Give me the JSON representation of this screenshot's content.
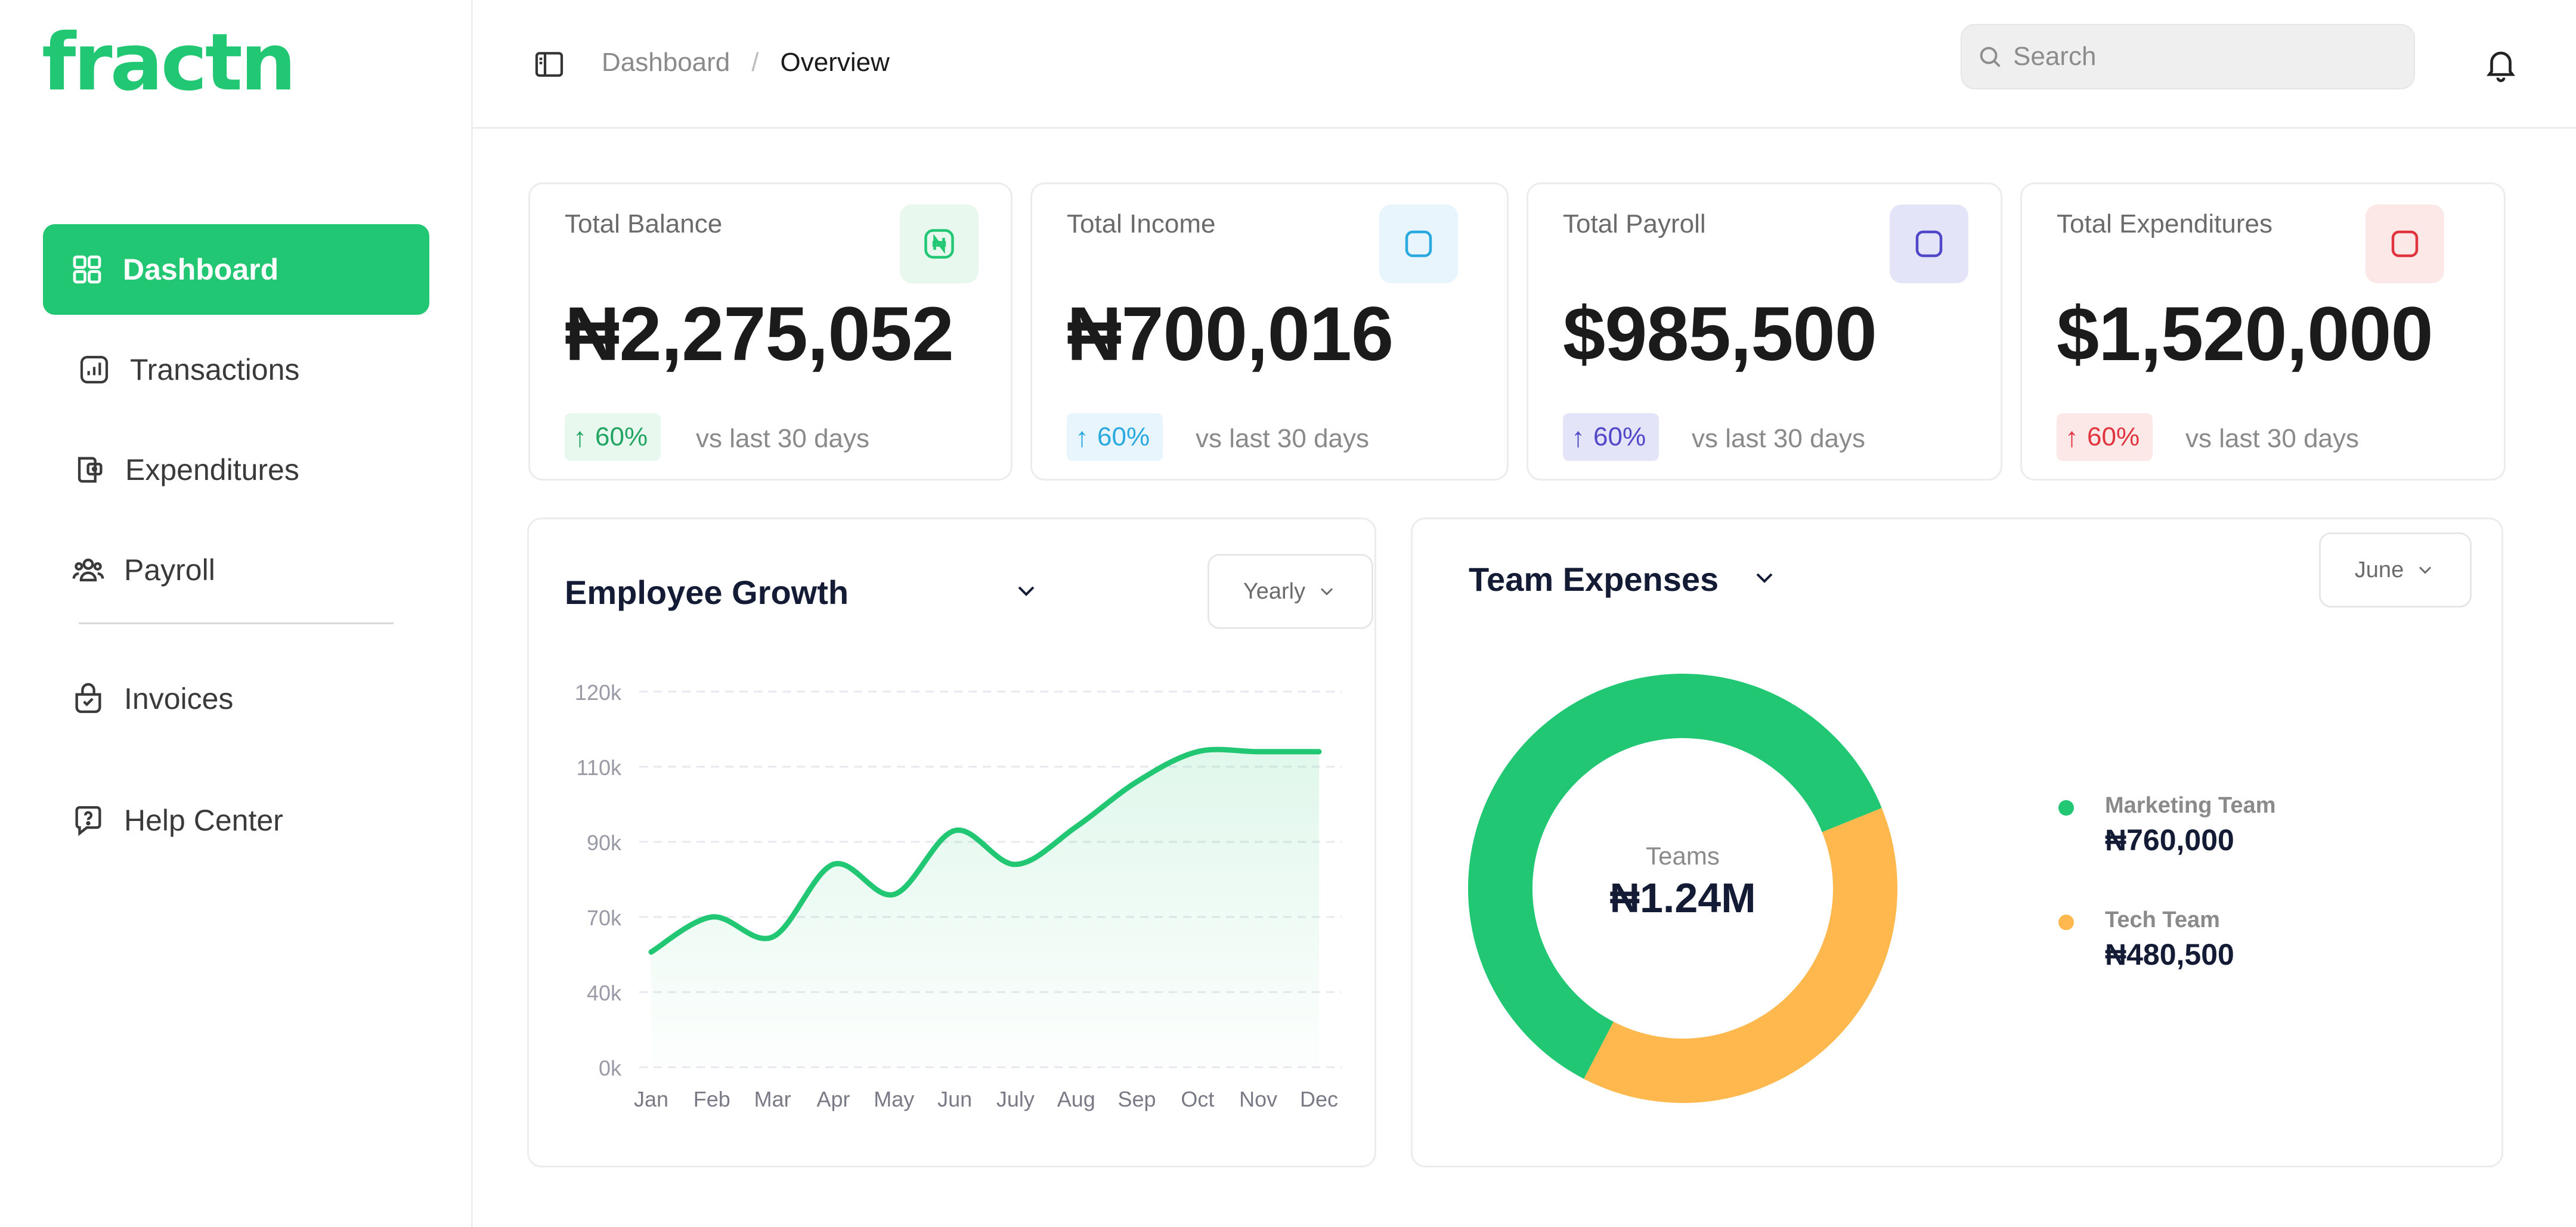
{
  "app": {
    "logo": "fractn"
  },
  "sidebar": {
    "items": [
      {
        "label": "Dashboard",
        "icon": "grid-icon",
        "active": true
      },
      {
        "label": "Transactions",
        "icon": "chart-icon"
      },
      {
        "label": "Expenditures",
        "icon": "wallet-icon"
      },
      {
        "label": "Payroll",
        "icon": "users-icon"
      },
      {
        "label": "Invoices",
        "icon": "invoice-icon"
      },
      {
        "label": "Help Center",
        "icon": "help-icon"
      }
    ]
  },
  "header": {
    "breadcrumb": [
      "Dashboard",
      "Overview"
    ],
    "breadcrumb_separator": "/",
    "search_placeholder": "Search"
  },
  "stats": [
    {
      "title": "Total Balance",
      "value": "₦2,275,052",
      "change": "60%",
      "compare": "vs last 30 days",
      "icon_symbol": "₦",
      "color": "#22c773",
      "bg": "#e8f8ef"
    },
    {
      "title": "Total Income",
      "value": "₦700,016",
      "change": "60%",
      "compare": "vs last 30 days",
      "color": "#2aa9e0",
      "bg": "#e8f5fc"
    },
    {
      "title": "Total Payroll",
      "value": "$985,500",
      "change": "60%",
      "compare": "vs last 30 days",
      "color": "#4f46c8",
      "bg": "#e4e4f8"
    },
    {
      "title": "Total Expenditures",
      "value": "$1,520,000",
      "change": "60%",
      "compare": "vs last 30 days",
      "color": "#e0343e",
      "bg": "#fde8e8"
    }
  ],
  "employee_growth": {
    "title": "Employee Growth",
    "period": "Yearly"
  },
  "team_expenses": {
    "title": "Team Expenses",
    "period": "June",
    "center_label": "Teams",
    "center_value": "₦1.24M",
    "legend": [
      {
        "name": "Marketing Team",
        "value": "₦760,000",
        "color": "#22c773"
      },
      {
        "name": "Tech Team",
        "value": "₦480,500",
        "color": "#ffb84d"
      }
    ]
  },
  "chart_data": [
    {
      "type": "area",
      "title": "Employee Growth",
      "categories": [
        "Jan",
        "Feb",
        "Mar",
        "Apr",
        "May",
        "Jun",
        "July",
        "Aug",
        "Sep",
        "Oct",
        "Nov",
        "Dec"
      ],
      "y_tick_labels": [
        "0k",
        "40k",
        "70k",
        "90k",
        "110k",
        "120k"
      ],
      "values": [
        56,
        70,
        62,
        84,
        76,
        93,
        84,
        94,
        106,
        112,
        112,
        112
      ],
      "color": "#22c773",
      "grid": true
    },
    {
      "type": "pie",
      "variant": "donut",
      "categories": [
        "Marketing Team",
        "Tech Team"
      ],
      "values": [
        760000,
        480500
      ],
      "colors": [
        "#22c773",
        "#ffb84d"
      ]
    }
  ]
}
